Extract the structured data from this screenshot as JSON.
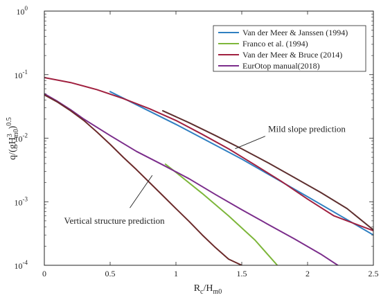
{
  "chart_data": {
    "type": "line",
    "xlabel_main": "R",
    "xlabel_sub1": "c",
    "xlabel_mid": "/H",
    "xlabel_sub2": "m0",
    "ylabel_main": "q/(gH",
    "ylabel_sup1": "3",
    "ylabel_sub": "m0",
    "ylabel_end": ")",
    "ylabel_sup2": "0.5",
    "xlim": [
      0,
      2.5
    ],
    "ylim": [
      0.0001,
      1
    ],
    "yscale": "log",
    "grid": false,
    "legend_position": "top-right",
    "x_ticks": [
      {
        "value": 0,
        "label": "0"
      },
      {
        "value": 0.5,
        "label": "0.5"
      },
      {
        "value": 1,
        "label": "1"
      },
      {
        "value": 1.5,
        "label": "1.5"
      },
      {
        "value": 2,
        "label": "2"
      },
      {
        "value": 2.5,
        "label": "2.5"
      }
    ],
    "y_ticks": [
      {
        "value": 0.0001,
        "base": "10",
        "exp": "-4"
      },
      {
        "value": 0.001,
        "base": "10",
        "exp": "-3"
      },
      {
        "value": 0.01,
        "base": "10",
        "exp": "-2"
      },
      {
        "value": 0.1,
        "base": "10",
        "exp": "-1"
      },
      {
        "value": 1,
        "base": "10",
        "exp": "0"
      }
    ],
    "series": [
      {
        "name": "Van der Meer & Janssen (1994)",
        "color": "#2f7fc1",
        "x": [
          0.5,
          1.0,
          1.5,
          2.0,
          2.5
        ],
        "y": [
          0.054,
          0.0165,
          0.0047,
          0.0012,
          0.0003
        ]
      },
      {
        "name": "Franco et al. (1994)",
        "color": "#7db63a",
        "x": [
          0.92,
          1.0,
          1.2,
          1.4,
          1.6,
          1.77
        ],
        "y": [
          0.0039,
          0.0029,
          0.00135,
          0.0006,
          0.00025,
          0.0001
        ]
      },
      {
        "name": "Van der Meer & Bruce (2014)",
        "color": "#a0203f",
        "x": [
          0,
          0.2,
          0.4,
          0.6,
          0.8,
          1.0,
          1.2,
          1.4,
          1.6,
          1.8,
          2.0,
          2.2,
          2.5
        ],
        "y": [
          0.09,
          0.075,
          0.058,
          0.042,
          0.029,
          0.019,
          0.0115,
          0.0068,
          0.0038,
          0.0021,
          0.0011,
          0.0006,
          0.00035
        ]
      },
      {
        "name": "EurOtop manual(2018)",
        "color": "#7b2d8b",
        "x": [
          0,
          0.1,
          0.2,
          0.3,
          0.5,
          0.7,
          0.9,
          1.1,
          1.3,
          1.5,
          1.7,
          1.9,
          2.1,
          2.23
        ],
        "y": [
          0.05,
          0.038,
          0.028,
          0.02,
          0.011,
          0.0062,
          0.0038,
          0.0023,
          0.0013,
          0.00075,
          0.00044,
          0.00026,
          0.00015,
          0.0001
        ]
      },
      {
        "name": "",
        "color": "#6b2a2a",
        "x": [
          0,
          0.1,
          0.2,
          0.3,
          0.4,
          0.5,
          0.6,
          0.7,
          0.8,
          0.9,
          1.0,
          1.1,
          1.2,
          1.3,
          1.4,
          1.5
        ],
        "y": [
          0.048,
          0.037,
          0.027,
          0.019,
          0.0125,
          0.008,
          0.005,
          0.0032,
          0.002,
          0.00125,
          0.00078,
          0.00049,
          0.0003,
          0.00019,
          0.000125,
          0.0001
        ]
      },
      {
        "name": "",
        "color": "#5e2f2f",
        "x": [
          0.9,
          1.1,
          1.3,
          1.5,
          1.7,
          1.9,
          2.1,
          2.3,
          2.5
        ],
        "y": [
          0.027,
          0.0175,
          0.011,
          0.0068,
          0.0041,
          0.0024,
          0.0014,
          0.00078,
          0.00036
        ]
      }
    ],
    "annotations": [
      {
        "text": "Mild slope prediction",
        "x": 1.7,
        "y": 0.0125,
        "arrow_to_x": 1.45,
        "arrow_to_y": 0.0065
      },
      {
        "text": "Vertical structure prediction",
        "x": 0.15,
        "y": 0.00045,
        "arrow_to_x": 0.82,
        "arrow_to_y": 0.0026
      }
    ]
  }
}
